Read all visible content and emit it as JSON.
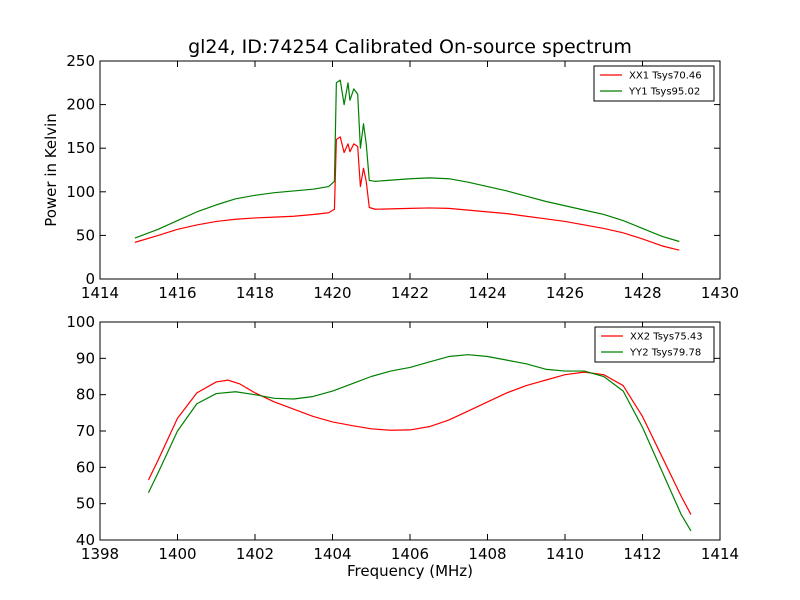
{
  "figure": {
    "title": "gl24, ID:74254 Calibrated On-source spectrum",
    "xlabel": "Frequency (MHz)",
    "top_ylabel": "Power in Kelvin"
  },
  "chart_data": [
    {
      "type": "line",
      "title": "gl24, ID:74254 Calibrated On-source spectrum",
      "xlabel": "",
      "ylabel": "Power in Kelvin",
      "xlim": [
        1414,
        1430
      ],
      "ylim": [
        0,
        250
      ],
      "xticks": [
        1414,
        1416,
        1418,
        1420,
        1422,
        1424,
        1426,
        1428,
        1430
      ],
      "yticks": [
        0,
        50,
        100,
        150,
        200,
        250
      ],
      "grid": false,
      "legend_position": "top-right",
      "series": [
        {
          "name": "XX1 Tsys70.46",
          "color": "#ff0000",
          "points": [
            [
              1414.9,
              42
            ],
            [
              1415.5,
              50
            ],
            [
              1416.0,
              57
            ],
            [
              1416.5,
              62
            ],
            [
              1417.0,
              66
            ],
            [
              1417.5,
              68.5
            ],
            [
              1418.0,
              70
            ],
            [
              1418.5,
              71
            ],
            [
              1419.0,
              72
            ],
            [
              1419.5,
              74
            ],
            [
              1419.9,
              76
            ],
            [
              1420.05,
              80
            ],
            [
              1420.1,
              160
            ],
            [
              1420.2,
              163
            ],
            [
              1420.3,
              145
            ],
            [
              1420.4,
              155
            ],
            [
              1420.45,
              146
            ],
            [
              1420.55,
              155
            ],
            [
              1420.65,
              152
            ],
            [
              1420.72,
              106
            ],
            [
              1420.8,
              127
            ],
            [
              1420.87,
              112
            ],
            [
              1420.95,
              82
            ],
            [
              1421.1,
              80
            ],
            [
              1422.0,
              81
            ],
            [
              1422.5,
              81.5
            ],
            [
              1423.0,
              81
            ],
            [
              1423.5,
              79
            ],
            [
              1424.0,
              77
            ],
            [
              1424.5,
              75
            ],
            [
              1425.0,
              72
            ],
            [
              1425.5,
              69
            ],
            [
              1426.0,
              66
            ],
            [
              1426.5,
              62
            ],
            [
              1427.0,
              58
            ],
            [
              1427.5,
              53
            ],
            [
              1428.0,
              46
            ],
            [
              1428.5,
              38
            ],
            [
              1428.95,
              33
            ]
          ]
        },
        {
          "name": "YY1 Tsys95.02",
          "color": "#008000",
          "points": [
            [
              1414.9,
              47
            ],
            [
              1415.5,
              57
            ],
            [
              1416.0,
              67
            ],
            [
              1416.5,
              77
            ],
            [
              1417.0,
              85
            ],
            [
              1417.5,
              92
            ],
            [
              1418.0,
              96
            ],
            [
              1418.5,
              99
            ],
            [
              1419.0,
              101
            ],
            [
              1419.5,
              103
            ],
            [
              1419.9,
              106
            ],
            [
              1420.05,
              112
            ],
            [
              1420.1,
              225
            ],
            [
              1420.2,
              228
            ],
            [
              1420.3,
              200
            ],
            [
              1420.4,
              225
            ],
            [
              1420.45,
              205
            ],
            [
              1420.55,
              218
            ],
            [
              1420.65,
              212
            ],
            [
              1420.72,
              150
            ],
            [
              1420.8,
              178
            ],
            [
              1420.87,
              155
            ],
            [
              1420.95,
              113
            ],
            [
              1421.1,
              112
            ],
            [
              1422.0,
              115
            ],
            [
              1422.5,
              116
            ],
            [
              1423.0,
              115
            ],
            [
              1423.5,
              111
            ],
            [
              1424.0,
              106
            ],
            [
              1424.5,
              101
            ],
            [
              1425.0,
              95
            ],
            [
              1425.5,
              89
            ],
            [
              1426.0,
              84
            ],
            [
              1426.5,
              79
            ],
            [
              1427.0,
              74
            ],
            [
              1427.5,
              67
            ],
            [
              1428.0,
              58
            ],
            [
              1428.5,
              49
            ],
            [
              1428.95,
              43
            ]
          ]
        }
      ]
    },
    {
      "type": "line",
      "title": "",
      "xlabel": "Frequency (MHz)",
      "ylabel": "",
      "xlim": [
        1398,
        1414
      ],
      "ylim": [
        40,
        100
      ],
      "xticks": [
        1398,
        1400,
        1402,
        1404,
        1406,
        1408,
        1410,
        1412,
        1414
      ],
      "yticks": [
        40,
        50,
        60,
        70,
        80,
        90,
        100
      ],
      "grid": false,
      "legend_position": "top-right",
      "series": [
        {
          "name": "XX2 Tsys75.43",
          "color": "#ff0000",
          "points": [
            [
              1399.25,
              56.5
            ],
            [
              1399.5,
              62
            ],
            [
              1400.0,
              73.5
            ],
            [
              1400.5,
              80.5
            ],
            [
              1401.0,
              83.5
            ],
            [
              1401.3,
              84
            ],
            [
              1401.6,
              83
            ],
            [
              1402.0,
              80.5
            ],
            [
              1402.5,
              78
            ],
            [
              1403.0,
              76
            ],
            [
              1403.5,
              74
            ],
            [
              1404.0,
              72.5
            ],
            [
              1404.5,
              71.5
            ],
            [
              1405.0,
              70.6
            ],
            [
              1405.5,
              70.2
            ],
            [
              1406.0,
              70.3
            ],
            [
              1406.5,
              71.2
            ],
            [
              1407.0,
              73
            ],
            [
              1407.5,
              75.5
            ],
            [
              1408.0,
              78
            ],
            [
              1408.5,
              80.5
            ],
            [
              1409.0,
              82.5
            ],
            [
              1409.5,
              84
            ],
            [
              1410.0,
              85.5
            ],
            [
              1410.5,
              86.2
            ],
            [
              1411.0,
              85.5
            ],
            [
              1411.5,
              82.5
            ],
            [
              1412.0,
              74
            ],
            [
              1412.5,
              63
            ],
            [
              1413.0,
              52
            ],
            [
              1413.25,
              47
            ]
          ]
        },
        {
          "name": "YY2 Tsys79.78",
          "color": "#008000",
          "points": [
            [
              1399.25,
              53
            ],
            [
              1399.5,
              58.5
            ],
            [
              1400.0,
              70
            ],
            [
              1400.5,
              77.5
            ],
            [
              1401.0,
              80.3
            ],
            [
              1401.5,
              80.8
            ],
            [
              1402.0,
              80
            ],
            [
              1402.5,
              79
            ],
            [
              1403.0,
              78.8
            ],
            [
              1403.5,
              79.5
            ],
            [
              1404.0,
              81
            ],
            [
              1404.5,
              83
            ],
            [
              1405.0,
              85
            ],
            [
              1405.5,
              86.5
            ],
            [
              1406.0,
              87.5
            ],
            [
              1406.5,
              89
            ],
            [
              1407.0,
              90.5
            ],
            [
              1407.5,
              91
            ],
            [
              1408.0,
              90.5
            ],
            [
              1408.5,
              89.5
            ],
            [
              1409.0,
              88.5
            ],
            [
              1409.5,
              87
            ],
            [
              1410.0,
              86.5
            ],
            [
              1410.5,
              86.5
            ],
            [
              1411.0,
              85
            ],
            [
              1411.5,
              81
            ],
            [
              1412.0,
              71
            ],
            [
              1412.5,
              59
            ],
            [
              1413.0,
              47
            ],
            [
              1413.25,
              42.5
            ]
          ]
        }
      ]
    }
  ]
}
